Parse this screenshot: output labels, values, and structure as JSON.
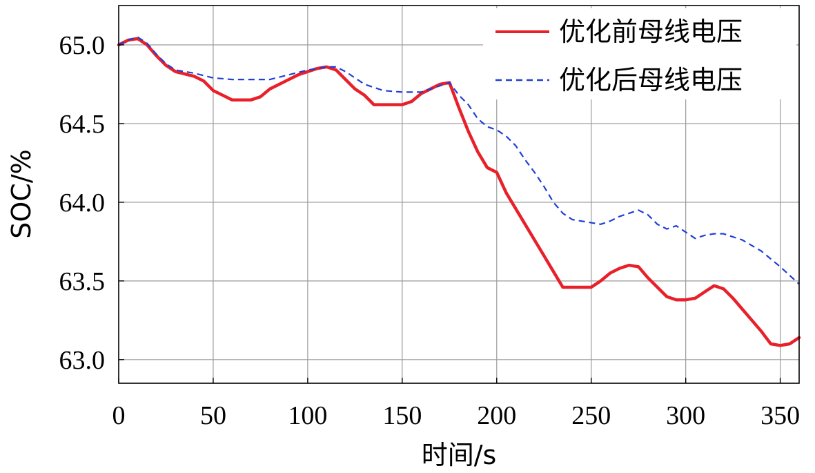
{
  "chart_data": {
    "type": "line",
    "title": "",
    "xlabel": "时间/s",
    "ylabel": "SOC/%",
    "xlim": [
      0,
      360
    ],
    "ylim": [
      62.85,
      65.25
    ],
    "grid": true,
    "legend_position": "top-right",
    "x_ticks": [
      "0",
      "50",
      "100",
      "150",
      "200",
      "250",
      "300",
      "350"
    ],
    "x_tick_values": [
      0,
      50,
      100,
      150,
      200,
      250,
      300,
      350
    ],
    "y_ticks": [
      "63.0",
      "63.5",
      "64.0",
      "64.5",
      "65.0"
    ],
    "y_tick_values": [
      63.0,
      63.5,
      64.0,
      64.5,
      65.0
    ],
    "series": [
      {
        "name": "优化前母线电压",
        "color": "#e8202a",
        "style": "solid",
        "x": [
          0,
          5,
          10,
          15,
          20,
          25,
          30,
          40,
          45,
          50,
          55,
          60,
          65,
          70,
          75,
          80,
          85,
          90,
          95,
          100,
          105,
          110,
          115,
          120,
          125,
          130,
          135,
          140,
          145,
          150,
          155,
          160,
          165,
          170,
          175,
          180,
          185,
          190,
          195,
          200,
          205,
          210,
          215,
          220,
          225,
          230,
          235,
          240,
          245,
          250,
          255,
          260,
          265,
          270,
          275,
          280,
          285,
          290,
          295,
          300,
          305,
          310,
          315,
          320,
          325,
          330,
          335,
          340,
          345,
          350,
          355,
          360
        ],
        "y": [
          65.0,
          65.03,
          65.04,
          65.0,
          64.93,
          64.87,
          64.83,
          64.8,
          64.77,
          64.71,
          64.68,
          64.65,
          64.65,
          64.65,
          64.67,
          64.72,
          64.75,
          64.78,
          64.81,
          64.83,
          64.85,
          64.86,
          64.84,
          64.78,
          64.72,
          64.68,
          64.62,
          64.62,
          64.62,
          64.62,
          64.64,
          64.69,
          64.72,
          64.75,
          64.76,
          64.6,
          64.45,
          64.32,
          64.22,
          64.19,
          64.06,
          63.96,
          63.86,
          63.76,
          63.66,
          63.56,
          63.46,
          63.46,
          63.46,
          63.46,
          63.5,
          63.55,
          63.58,
          63.6,
          63.59,
          63.52,
          63.46,
          63.4,
          63.38,
          63.38,
          63.39,
          63.43,
          63.47,
          63.45,
          63.39,
          63.32,
          63.25,
          63.18,
          63.1,
          63.09,
          63.1,
          63.14
        ]
      },
      {
        "name": "优化后母线电压",
        "color": "#1f3fd6",
        "style": "dashed",
        "x": [
          0,
          5,
          10,
          15,
          20,
          25,
          30,
          40,
          50,
          60,
          70,
          80,
          90,
          100,
          105,
          110,
          115,
          120,
          125,
          130,
          140,
          150,
          160,
          170,
          175,
          180,
          185,
          190,
          195,
          200,
          205,
          210,
          215,
          220,
          225,
          230,
          235,
          240,
          250,
          255,
          260,
          265,
          270,
          275,
          280,
          285,
          290,
          295,
          300,
          305,
          310,
          315,
          320,
          330,
          340,
          350,
          360
        ],
        "y": [
          65.0,
          65.03,
          65.05,
          65.01,
          64.94,
          64.88,
          64.84,
          64.82,
          64.79,
          64.78,
          64.78,
          64.78,
          64.81,
          64.84,
          64.85,
          64.86,
          64.86,
          64.83,
          64.79,
          64.75,
          64.71,
          64.7,
          64.7,
          64.74,
          64.76,
          64.68,
          64.62,
          64.53,
          64.48,
          64.46,
          64.42,
          64.36,
          64.27,
          64.19,
          64.1,
          64.0,
          63.93,
          63.89,
          63.87,
          63.86,
          63.88,
          63.91,
          63.93,
          63.95,
          63.92,
          63.86,
          63.83,
          63.85,
          63.81,
          63.77,
          63.79,
          63.8,
          63.8,
          63.76,
          63.69,
          63.59,
          63.48
        ]
      }
    ]
  }
}
